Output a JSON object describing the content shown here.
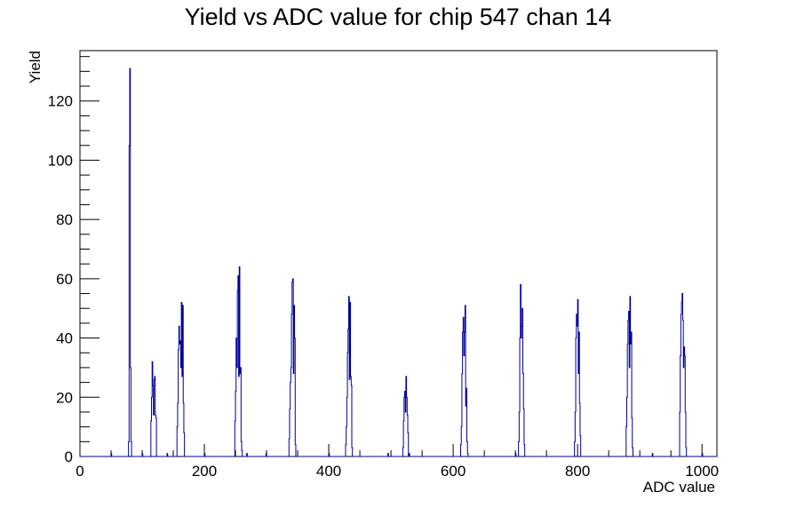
{
  "chart_data": {
    "type": "histogram",
    "title": "Yield vs ADC value for chip 547 chan 14",
    "xlabel": "ADC value",
    "ylabel": "Yield",
    "xlim": [
      0,
      1024
    ],
    "ylim": [
      0,
      137
    ],
    "x_ticks": [
      0,
      200,
      400,
      600,
      800,
      1000
    ],
    "y_ticks": [
      0,
      20,
      40,
      60,
      80,
      100,
      120
    ],
    "line_color": "#000099",
    "bins": [
      [
        50,
        1
      ],
      [
        78,
        5
      ],
      [
        79,
        105
      ],
      [
        80,
        131
      ],
      [
        81,
        30
      ],
      [
        82,
        5
      ],
      [
        100,
        1
      ],
      [
        114,
        12
      ],
      [
        115,
        20
      ],
      [
        116,
        32
      ],
      [
        117,
        24
      ],
      [
        118,
        14
      ],
      [
        119,
        26
      ],
      [
        120,
        27
      ],
      [
        121,
        14
      ],
      [
        122,
        13
      ],
      [
        140,
        1
      ],
      [
        156,
        10
      ],
      [
        157,
        18
      ],
      [
        158,
        36
      ],
      [
        159,
        44
      ],
      [
        160,
        38
      ],
      [
        161,
        39
      ],
      [
        162,
        30
      ],
      [
        163,
        52
      ],
      [
        164,
        27
      ],
      [
        165,
        51
      ],
      [
        166,
        18
      ],
      [
        167,
        8
      ],
      [
        200,
        1
      ],
      [
        249,
        12
      ],
      [
        250,
        22
      ],
      [
        251,
        40
      ],
      [
        252,
        30
      ],
      [
        253,
        56
      ],
      [
        254,
        61
      ],
      [
        255,
        27
      ],
      [
        256,
        64
      ],
      [
        257,
        28
      ],
      [
        258,
        30
      ],
      [
        259,
        5
      ],
      [
        260,
        2
      ],
      [
        268,
        1
      ],
      [
        299,
        1
      ],
      [
        336,
        6
      ],
      [
        337,
        16
      ],
      [
        338,
        25
      ],
      [
        339,
        30
      ],
      [
        340,
        48
      ],
      [
        341,
        59
      ],
      [
        342,
        60
      ],
      [
        343,
        28
      ],
      [
        344,
        51
      ],
      [
        345,
        40
      ],
      [
        346,
        4
      ],
      [
        400,
        1
      ],
      [
        427,
        4
      ],
      [
        428,
        10
      ],
      [
        429,
        20
      ],
      [
        430,
        35
      ],
      [
        431,
        43
      ],
      [
        432,
        54
      ],
      [
        433,
        26
      ],
      [
        434,
        52
      ],
      [
        435,
        27
      ],
      [
        436,
        24
      ],
      [
        437,
        3
      ],
      [
        495,
        1
      ],
      [
        519,
        3
      ],
      [
        520,
        12
      ],
      [
        521,
        20
      ],
      [
        522,
        22
      ],
      [
        523,
        15
      ],
      [
        524,
        27
      ],
      [
        525,
        20
      ],
      [
        526,
        14
      ],
      [
        527,
        8
      ],
      [
        529,
        1
      ],
      [
        612,
        4
      ],
      [
        613,
        10
      ],
      [
        614,
        28
      ],
      [
        615,
        42
      ],
      [
        616,
        47
      ],
      [
        617,
        34
      ],
      [
        618,
        42
      ],
      [
        619,
        51
      ],
      [
        620,
        17
      ],
      [
        621,
        23
      ],
      [
        622,
        5
      ],
      [
        623,
        1
      ],
      [
        700,
        1
      ],
      [
        705,
        5
      ],
      [
        706,
        15
      ],
      [
        707,
        40
      ],
      [
        708,
        58
      ],
      [
        709,
        40
      ],
      [
        710,
        44
      ],
      [
        711,
        50
      ],
      [
        712,
        28
      ],
      [
        713,
        16
      ],
      [
        714,
        4
      ],
      [
        795,
        5
      ],
      [
        796,
        15
      ],
      [
        797,
        40
      ],
      [
        798,
        48
      ],
      [
        799,
        44
      ],
      [
        800,
        53
      ],
      [
        801,
        28
      ],
      [
        802,
        42
      ],
      [
        803,
        18
      ],
      [
        804,
        7
      ],
      [
        878,
        10
      ],
      [
        879,
        20
      ],
      [
        880,
        38
      ],
      [
        881,
        46
      ],
      [
        882,
        49
      ],
      [
        883,
        30
      ],
      [
        884,
        54
      ],
      [
        885,
        38
      ],
      [
        886,
        42
      ],
      [
        887,
        13
      ],
      [
        888,
        3
      ],
      [
        920,
        1
      ],
      [
        964,
        15
      ],
      [
        965,
        34
      ],
      [
        966,
        48
      ],
      [
        967,
        52
      ],
      [
        968,
        55
      ],
      [
        969,
        46
      ],
      [
        970,
        30
      ],
      [
        971,
        37
      ],
      [
        972,
        34
      ],
      [
        973,
        15
      ],
      [
        974,
        3
      ],
      [
        1000,
        1
      ]
    ]
  }
}
